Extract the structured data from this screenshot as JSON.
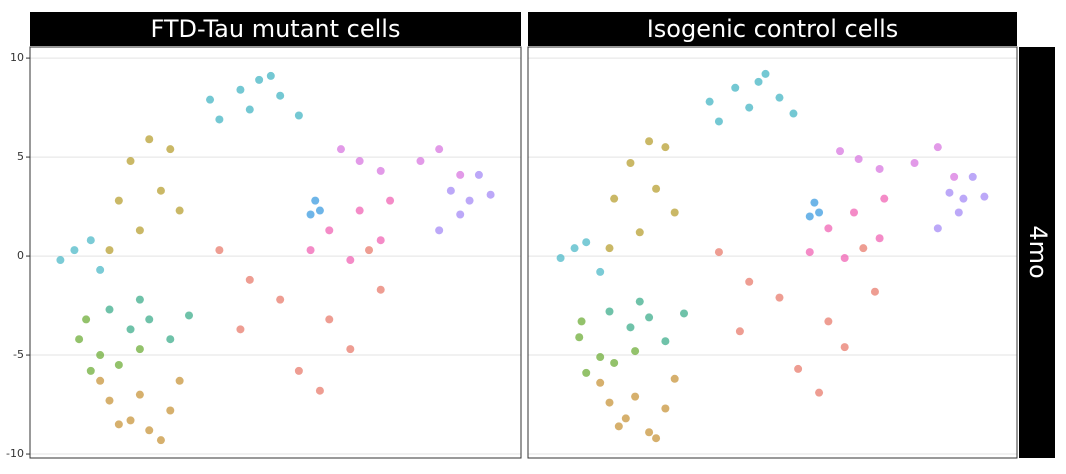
{
  "facet_row": "4mo",
  "chart_data": [
    {
      "type": "scatter",
      "title": "FTD-Tau mutant cells",
      "xlim": [
        -10,
        11
      ],
      "ylim": [
        -10.2,
        10.56
      ],
      "yticks": [
        -10,
        -5,
        0,
        5,
        10
      ],
      "grid": true,
      "series": [
        {
          "color": "#45b5c4",
          "x": [
            -2.3,
            -1.0,
            -0.2,
            0.7,
            1.5,
            -0.6,
            -1.9,
            0.3
          ],
          "y": [
            7.9,
            8.4,
            8.9,
            8.1,
            7.1,
            7.4,
            6.9,
            9.1
          ]
        },
        {
          "color": "#b8a033",
          "x": [
            -5.7,
            -4.9,
            -4.0,
            -6.2,
            -5.3,
            -4.4,
            -3.6,
            -6.6
          ],
          "y": [
            4.8,
            5.9,
            5.4,
            2.8,
            1.3,
            3.3,
            2.3,
            0.3
          ]
        },
        {
          "color": "#c8953c",
          "x": [
            -6.6,
            -5.7,
            -4.9,
            -4.0,
            -7.0,
            -5.3,
            -3.6,
            -6.2,
            -4.4
          ],
          "y": [
            -7.3,
            -8.3,
            -8.8,
            -7.8,
            -6.3,
            -7.0,
            -6.3,
            -8.5,
            -9.3
          ]
        },
        {
          "color": "#6fae3a",
          "x": [
            -7.9,
            -7.4,
            -7.0,
            -6.2,
            -7.6,
            -5.3
          ],
          "y": [
            -4.2,
            -5.8,
            -5.0,
            -5.5,
            -3.2,
            -4.7
          ]
        },
        {
          "color": "#3fae8c",
          "x": [
            -6.6,
            -5.7,
            -4.9,
            -4.0,
            -3.2,
            -5.3
          ],
          "y": [
            -2.7,
            -3.7,
            -3.2,
            -4.2,
            -3.0,
            -2.2
          ]
        },
        {
          "color": "#e87c6d",
          "x": [
            -1.9,
            -0.6,
            0.7,
            2.8,
            3.7,
            5.0,
            1.5,
            -1.0,
            4.5,
            2.4
          ],
          "y": [
            0.3,
            -1.2,
            -2.2,
            -3.2,
            -4.7,
            -1.7,
            -5.8,
            -3.7,
            0.3,
            -6.8
          ]
        },
        {
          "color": "#f064b4",
          "x": [
            2.8,
            4.1,
            5.0,
            3.7,
            5.4,
            2.0
          ],
          "y": [
            1.3,
            2.3,
            0.8,
            -0.2,
            2.8,
            0.3
          ]
        },
        {
          "color": "#d878e0",
          "x": [
            3.3,
            5.0,
            6.7,
            7.5,
            8.4,
            4.1
          ],
          "y": [
            5.4,
            4.3,
            4.8,
            5.4,
            4.1,
            4.8
          ]
        },
        {
          "color": "#a68bf5",
          "x": [
            8.0,
            8.8,
            9.7,
            8.4,
            9.2,
            7.5
          ],
          "y": [
            3.3,
            2.8,
            3.1,
            2.1,
            4.1,
            1.3
          ]
        },
        {
          "color": "#3d9ce0",
          "x": [
            2.2,
            2.4,
            2.0
          ],
          "y": [
            2.8,
            2.3,
            2.1
          ]
        },
        {
          "color": "#4fbac8",
          "x": [
            -8.7,
            -8.1,
            -7.4,
            -7.0
          ],
          "y": [
            -0.2,
            0.3,
            0.8,
            -0.7
          ]
        }
      ]
    },
    {
      "type": "scatter",
      "title": "Isogenic control cells",
      "xlim": [
        -10,
        11
      ],
      "ylim": [
        -10.2,
        10.56
      ],
      "grid": true,
      "series": [
        {
          "color": "#45b5c4",
          "x": [
            -2.2,
            -1.1,
            -0.1,
            0.8,
            1.4,
            -0.5,
            -1.8,
            0.2
          ],
          "y": [
            7.8,
            8.5,
            8.8,
            8.0,
            7.2,
            7.5,
            6.8,
            9.2
          ]
        },
        {
          "color": "#b8a033",
          "x": [
            -5.6,
            -4.8,
            -4.1,
            -6.3,
            -5.2,
            -4.5,
            -3.7,
            -6.5
          ],
          "y": [
            4.7,
            5.8,
            5.5,
            2.9,
            1.2,
            3.4,
            2.2,
            0.4
          ]
        },
        {
          "color": "#c8953c",
          "x": [
            -6.5,
            -5.8,
            -4.8,
            -4.1,
            -6.9,
            -5.4,
            -3.7,
            -6.1,
            -4.5
          ],
          "y": [
            -7.4,
            -8.2,
            -8.9,
            -7.7,
            -6.4,
            -7.1,
            -6.2,
            -8.6,
            -9.2
          ]
        },
        {
          "color": "#6fae3a",
          "x": [
            -7.8,
            -7.5,
            -6.9,
            -6.3,
            -7.7,
            -5.4
          ],
          "y": [
            -4.1,
            -5.9,
            -5.1,
            -5.4,
            -3.3,
            -4.8
          ]
        },
        {
          "color": "#3fae8c",
          "x": [
            -6.5,
            -5.6,
            -4.8,
            -4.1,
            -3.3,
            -5.2
          ],
          "y": [
            -2.8,
            -3.6,
            -3.1,
            -4.3,
            -2.9,
            -2.3
          ]
        },
        {
          "color": "#e87c6d",
          "x": [
            -1.8,
            -0.5,
            0.8,
            2.9,
            3.6,
            4.9,
            1.6,
            -0.9,
            4.4,
            2.5
          ],
          "y": [
            0.2,
            -1.3,
            -2.1,
            -3.3,
            -4.6,
            -1.8,
            -5.7,
            -3.8,
            0.4,
            -6.9
          ]
        },
        {
          "color": "#f064b4",
          "x": [
            2.9,
            4.0,
            5.1,
            3.6,
            5.3,
            2.1
          ],
          "y": [
            1.4,
            2.2,
            0.9,
            -0.1,
            2.9,
            0.2
          ]
        },
        {
          "color": "#d878e0",
          "x": [
            3.4,
            5.1,
            6.6,
            7.6,
            8.3,
            4.2
          ],
          "y": [
            5.3,
            4.4,
            4.7,
            5.5,
            4.0,
            4.9
          ]
        },
        {
          "color": "#a68bf5",
          "x": [
            8.1,
            8.7,
            9.6,
            8.5,
            9.1,
            7.6
          ],
          "y": [
            3.2,
            2.9,
            3.0,
            2.2,
            4.0,
            1.4
          ]
        },
        {
          "color": "#3d9ce0",
          "x": [
            2.3,
            2.5,
            2.1
          ],
          "y": [
            2.7,
            2.2,
            2.0
          ]
        },
        {
          "color": "#4fbac8",
          "x": [
            -8.6,
            -8.0,
            -7.5,
            -6.9
          ],
          "y": [
            -0.1,
            0.4,
            0.7,
            -0.8
          ]
        }
      ]
    }
  ]
}
